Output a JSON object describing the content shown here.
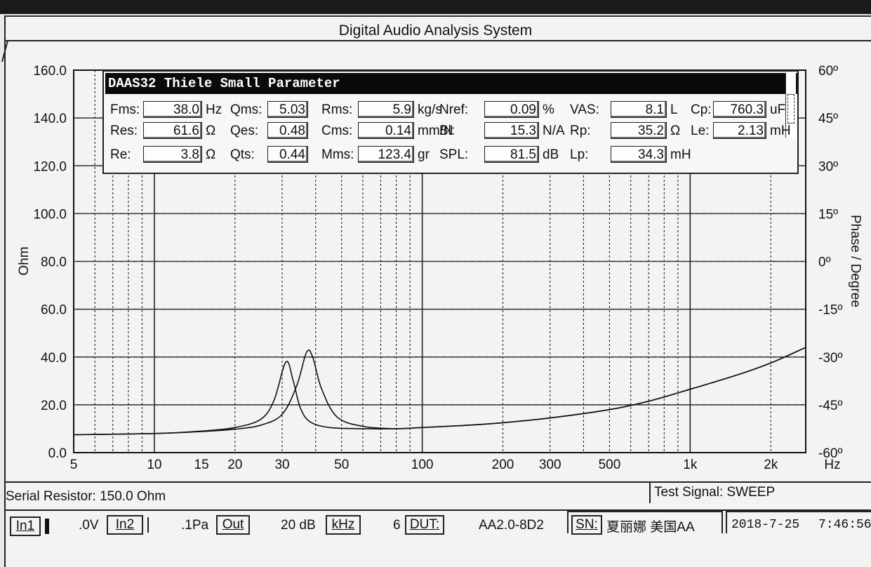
{
  "window": {
    "title": "Digital Audio Analysis System"
  },
  "chart_data": {
    "type": "line",
    "x_scale": "log",
    "x_ticks": [
      "5",
      "10",
      "15",
      "20",
      "30",
      "50",
      "100",
      "200",
      "300",
      "500",
      "1k",
      "2k"
    ],
    "x_unit": "Hz",
    "y_ticks": [
      "160.0",
      "140.0",
      "120.0",
      "100.0",
      "80.0",
      "60.0",
      "40.0",
      "20.0",
      "0.0"
    ],
    "ylabel": "Ohm",
    "ylim": [
      0,
      160
    ],
    "y2_ticks": [
      "60º",
      "45º",
      "30º",
      "15º",
      "0º",
      "-15º",
      "-30º",
      "-45º",
      "-60º"
    ],
    "y2label": "Phase / Degree",
    "y2lim": [
      -60,
      60
    ],
    "grid": true,
    "series": [
      {
        "x": [
          5,
          10,
          15,
          20,
          25,
          28,
          31,
          33,
          35,
          38,
          45,
          60,
          80,
          100,
          150,
          200,
          300,
          500,
          700,
          1000,
          1500,
          2000,
          2700
        ],
        "y": [
          7.5,
          8.0,
          9.0,
          10.5,
          14,
          22,
          38,
          30,
          19,
          13,
          10.5,
          10,
          10,
          10.5,
          11.5,
          12.5,
          14.5,
          18,
          21.5,
          26.5,
          32.5,
          37.5,
          44
        ]
      },
      {
        "x": [
          5,
          10,
          15,
          20,
          25,
          30,
          34,
          37,
          39,
          42,
          48,
          60,
          80,
          100,
          150,
          200,
          300,
          500,
          700,
          1000,
          1500,
          2000,
          2700
        ],
        "y": [
          7.5,
          8.0,
          8.8,
          9.8,
          11.5,
          16,
          28,
          42,
          40,
          27,
          15,
          11,
          10,
          10.5,
          11.5,
          12.5,
          14.5,
          18,
          21.5,
          26.5,
          32.5,
          37.5,
          44
        ]
      }
    ]
  },
  "ts_panel": {
    "title": "DAAS32 Thiele Small Parameter",
    "rows": [
      [
        {
          "label": "Fms:",
          "value": "38.0",
          "unit": "Hz"
        },
        {
          "label": "Qms:",
          "value": "5.03",
          "unit": ""
        },
        {
          "label": "Rms:",
          "value": "5.9",
          "unit": "kg/s"
        },
        {
          "label": "Nref:",
          "value": "0.09",
          "unit": "%"
        },
        {
          "label": "VAS:",
          "value": "8.1",
          "unit": "L"
        },
        {
          "label": "Cp:",
          "value": "760.3",
          "unit": "uF"
        }
      ],
      [
        {
          "label": "Res:",
          "value": "61.6",
          "unit": "Ω"
        },
        {
          "label": "Qes:",
          "value": "0.48",
          "unit": ""
        },
        {
          "label": "Cms:",
          "value": "0.14",
          "unit": "mm/N"
        },
        {
          "label": "Bl:",
          "value": "15.3",
          "unit": "N/A"
        },
        {
          "label": "Rp:",
          "value": "35.2",
          "unit": "Ω"
        },
        {
          "label": "Le:",
          "value": "2.13",
          "unit": "mH"
        }
      ],
      [
        {
          "label": "Re:",
          "value": "3.8",
          "unit": "Ω"
        },
        {
          "label": "Qts:",
          "value": "0.44",
          "unit": ""
        },
        {
          "label": "Mms:",
          "value": "123.4",
          "unit": "gr"
        },
        {
          "label": "SPL:",
          "value": "81.5",
          "unit": "dB"
        },
        {
          "label": "Lp:",
          "value": "34.3",
          "unit": "mH"
        }
      ]
    ]
  },
  "status": {
    "serial_resistor": "Serial Resistor: 150.0 Ohm",
    "test_signal": "Test Signal: SWEEP"
  },
  "toolbar": {
    "in1": "In1",
    "in1_value": ".0V",
    "in2": "In2",
    "in2_value": ".1Pa",
    "out": "Out",
    "out_value": "20 dB",
    "khz": "kHz",
    "khz_value": "6",
    "dut": "DUT:",
    "dut_value": "AA2.0-8D2",
    "sn": "SN:",
    "sn_value": "夏丽娜 美国AA",
    "date": "2018-7-25",
    "time": "7:46:56"
  }
}
